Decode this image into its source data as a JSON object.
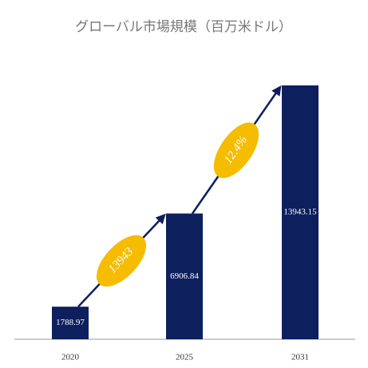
{
  "chart_data": {
    "type": "bar",
    "title": "グローバル市場規模（百万米ドル）",
    "categories": [
      "2020",
      "2025",
      "2031"
    ],
    "values": [
      1788.97,
      6906.84,
      13943.15
    ],
    "color": "#0d1f5c",
    "annotations": [
      "13943",
      "12.4%"
    ],
    "annotation_color": "#f5bc00"
  }
}
